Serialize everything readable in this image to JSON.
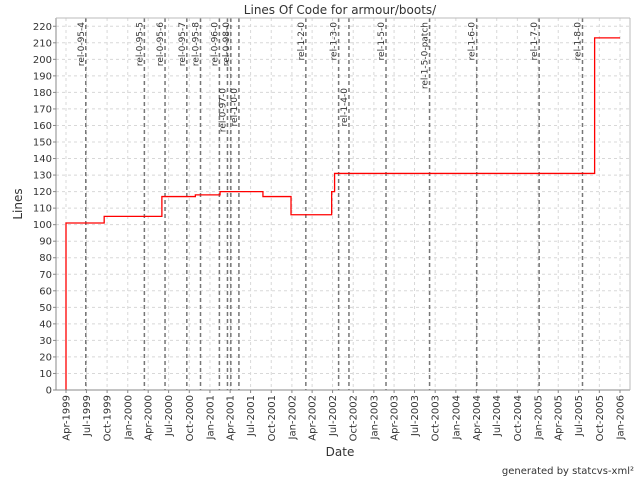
{
  "chart_data": {
    "type": "line",
    "step": true,
    "title": "Lines Of Code for armour/boots/",
    "xlabel": "Date",
    "ylabel": "Lines",
    "footer": "generated by statcvs-xml²",
    "ylim": [
      0,
      225
    ],
    "xlim": [
      "1999-02-15",
      "2006-02-15"
    ],
    "yticks": [
      0,
      10,
      20,
      30,
      40,
      50,
      60,
      70,
      80,
      90,
      100,
      110,
      120,
      130,
      140,
      150,
      160,
      170,
      180,
      190,
      200,
      210,
      220
    ],
    "xticks": [
      {
        "date": "1999-04-01",
        "label": "Apr-1999"
      },
      {
        "date": "1999-07-01",
        "label": "Jul-1999"
      },
      {
        "date": "1999-10-01",
        "label": "Oct-1999"
      },
      {
        "date": "2000-01-01",
        "label": "Jan-2000"
      },
      {
        "date": "2000-04-01",
        "label": "Apr-2000"
      },
      {
        "date": "2000-07-01",
        "label": "Jul-2000"
      },
      {
        "date": "2000-10-01",
        "label": "Oct-2000"
      },
      {
        "date": "2001-01-01",
        "label": "Jan-2001"
      },
      {
        "date": "2001-04-01",
        "label": "Apr-2001"
      },
      {
        "date": "2001-07-01",
        "label": "Jul-2001"
      },
      {
        "date": "2001-10-01",
        "label": "Oct-2001"
      },
      {
        "date": "2002-01-01",
        "label": "Jan-2002"
      },
      {
        "date": "2002-04-01",
        "label": "Apr-2002"
      },
      {
        "date": "2002-07-01",
        "label": "Jul-2002"
      },
      {
        "date": "2002-10-01",
        "label": "Oct-2002"
      },
      {
        "date": "2003-01-01",
        "label": "Jan-2003"
      },
      {
        "date": "2003-04-01",
        "label": "Apr-2003"
      },
      {
        "date": "2003-07-01",
        "label": "Jul-2003"
      },
      {
        "date": "2003-10-01",
        "label": "Oct-2003"
      },
      {
        "date": "2004-01-01",
        "label": "Jan-2004"
      },
      {
        "date": "2004-04-01",
        "label": "Apr-2004"
      },
      {
        "date": "2004-07-01",
        "label": "Jul-2004"
      },
      {
        "date": "2004-10-01",
        "label": "Oct-2004"
      },
      {
        "date": "2005-01-01",
        "label": "Jan-2005"
      },
      {
        "date": "2005-04-01",
        "label": "Apr-2005"
      },
      {
        "date": "2005-07-01",
        "label": "Jul-2005"
      },
      {
        "date": "2005-10-01",
        "label": "Oct-2005"
      },
      {
        "date": "2006-01-01",
        "label": "Jan-2006"
      }
    ],
    "grid": true,
    "series_color": "#ff0000",
    "points": [
      [
        "1999-04-01",
        101
      ],
      [
        "1999-09-18",
        105
      ],
      [
        "2000-06-01",
        117
      ],
      [
        "2000-10-28",
        118
      ],
      [
        "2001-02-15",
        120
      ],
      [
        "2001-08-25",
        117
      ],
      [
        "2001-12-28",
        106
      ],
      [
        "2002-06-27",
        120
      ],
      [
        "2002-07-10",
        131
      ],
      [
        "2005-09-10",
        213
      ],
      [
        "2006-01-01",
        213
      ]
    ],
    "markers": [
      {
        "date": "1999-06-28",
        "label": "rel-0-95-4"
      },
      {
        "date": "2000-03-15",
        "label": "rel-0-95-5"
      },
      {
        "date": "2000-06-15",
        "label": "rel-0-95-6"
      },
      {
        "date": "2000-09-20",
        "label": "rel-0-95-7"
      },
      {
        "date": "2000-11-20",
        "label": "rel-0-95-8"
      },
      {
        "date": "2001-02-12",
        "label": "rel-0-96-0"
      },
      {
        "date": "2001-03-20",
        "label": "rel-0-97-0"
      },
      {
        "date": "2001-04-04",
        "label": "rel-0-98-0"
      },
      {
        "date": "2001-05-10",
        "label": "rel-1-0-0"
      },
      {
        "date": "2002-03-04",
        "label": "rel-1-2-0"
      },
      {
        "date": "2002-07-28",
        "label": "rel-1-3-0"
      },
      {
        "date": "2002-09-12",
        "label": "rel-1-4-0"
      },
      {
        "date": "2003-02-24",
        "label": "rel-1-5-0"
      },
      {
        "date": "2003-09-06",
        "label": "rel-1-5-0-patch"
      },
      {
        "date": "2004-04-03",
        "label": "rel-1-6-0"
      },
      {
        "date": "2005-01-06",
        "label": "rel-1-7-0"
      },
      {
        "date": "2005-07-18",
        "label": "rel-1-8-0"
      }
    ]
  }
}
